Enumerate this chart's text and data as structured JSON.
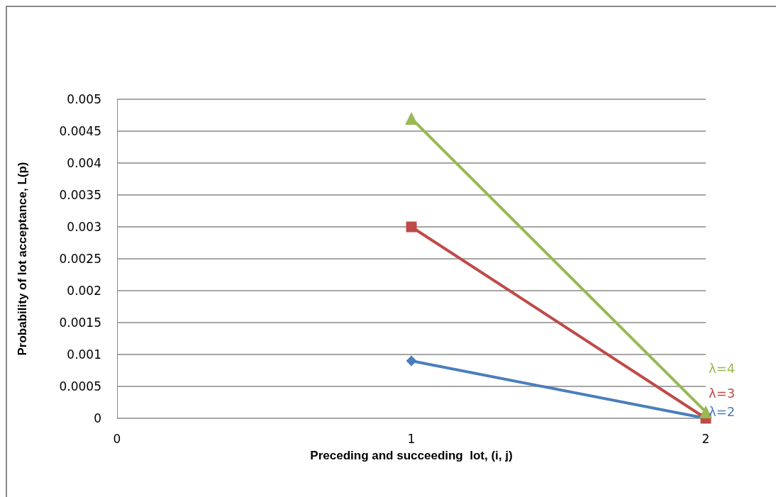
{
  "chart_data": {
    "type": "line",
    "xlabel": "Preceding and succeeding  lot, (i, j)",
    "ylabel": "Probability of lot acceptance, L(p)",
    "x": [
      1,
      2
    ],
    "xlim": [
      0,
      2
    ],
    "xticks": [
      0,
      1,
      2
    ],
    "ylim": [
      0,
      0.005
    ],
    "yticks": [
      0,
      0.0005,
      0.001,
      0.0015,
      0.002,
      0.0025,
      0.003,
      0.0035,
      0.004,
      0.0045,
      0.005
    ],
    "grid": "y",
    "legend": false,
    "line_style": "solid",
    "series": [
      {
        "name": "λ=2",
        "color": "#4a7ebb",
        "marker": "diamond",
        "values": [
          0.0009,
          0
        ]
      },
      {
        "name": "λ=3",
        "color": "#be4b48",
        "marker": "square",
        "values": [
          0.003,
          0
        ]
      },
      {
        "name": "λ=4",
        "color": "#98b954",
        "marker": "triangle",
        "values": [
          0.0047,
          0.0001
        ]
      }
    ]
  }
}
